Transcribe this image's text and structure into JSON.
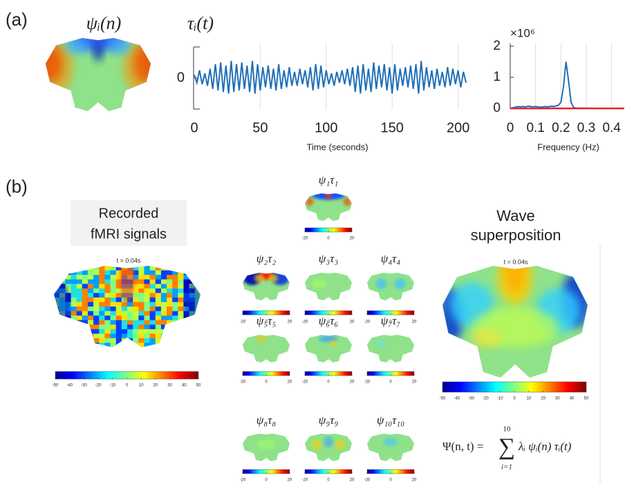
{
  "panel_labels": [
    "(a)",
    "(b)"
  ],
  "panel_a": {
    "map_label": "ψᵢ(n)",
    "series_label": "τᵢ(t)"
  },
  "chart_data": [
    {
      "type": "line",
      "x_label": "Time (seconds)",
      "x": [
        0,
        2,
        4,
        6,
        8,
        10,
        12,
        14,
        16,
        18,
        20,
        22,
        24,
        26,
        28,
        30,
        32,
        34,
        36,
        38,
        40,
        42,
        44,
        46,
        48,
        50,
        52,
        54,
        56,
        58,
        60,
        62,
        64,
        66,
        68,
        70,
        72,
        74,
        76,
        78,
        80,
        82,
        84,
        86,
        88,
        90,
        92,
        94,
        96,
        98,
        100,
        102,
        104,
        106,
        108,
        110,
        112,
        114,
        116,
        118,
        120,
        122,
        124,
        126,
        128,
        130,
        132,
        134,
        136,
        138,
        140,
        142,
        144,
        146,
        148,
        150,
        152,
        154,
        156,
        158,
        160,
        162,
        164,
        166,
        168,
        170,
        172,
        174,
        176,
        178,
        180,
        182,
        184,
        186,
        188,
        190,
        192,
        194,
        196,
        198,
        200,
        202,
        204,
        206
      ],
      "series": [
        {
          "color": "#1f6fb8",
          "values": [
            0.2,
            -0.3,
            0.5,
            -0.4,
            0.3,
            -0.5,
            0.6,
            -0.7,
            0.9,
            -0.8,
            1.0,
            -0.9,
            0.8,
            -1.0,
            1.1,
            -0.9,
            0.9,
            -0.8,
            1.0,
            -0.7,
            0.8,
            -0.9,
            1.1,
            -1.0,
            0.9,
            -0.8,
            0.7,
            -0.6,
            0.8,
            -0.7,
            0.6,
            -0.8,
            0.9,
            -0.7,
            0.5,
            -0.6,
            0.7,
            -0.5,
            0.4,
            -0.5,
            0.6,
            -0.4,
            0.5,
            -0.6,
            0.7,
            -0.8,
            0.9,
            -0.7,
            0.8,
            -0.6,
            0.5,
            -0.4,
            0.3,
            -0.5,
            0.4,
            -0.3,
            0.5,
            -0.4,
            0.6,
            -0.5,
            0.7,
            -0.9,
            0.8,
            -1.0,
            0.9,
            -0.8,
            0.6,
            -0.9,
            1.0,
            -0.7,
            0.8,
            -0.6,
            0.9,
            -0.8,
            0.7,
            -1.0,
            0.9,
            -0.8,
            0.6,
            -0.5,
            0.7,
            -0.6,
            0.8,
            -0.7,
            0.9,
            -1.0,
            1.1,
            -0.8,
            0.7,
            -0.6,
            0.5,
            -0.7,
            0.6,
            -0.5,
            0.4,
            -0.6,
            0.7,
            -0.5,
            0.6,
            -0.4,
            0.5,
            -0.6,
            0.4,
            -0.3
          ]
        }
      ],
      "xlim": [
        0,
        207
      ],
      "xticks": [
        0,
        50,
        100,
        150,
        200
      ],
      "ylim": [
        -2,
        2
      ],
      "yticks": [
        0
      ],
      "grid": true
    },
    {
      "type": "line",
      "x_label": "Frequency (Hz)",
      "y_multiplier": "×10⁶",
      "x": [
        0,
        0.01,
        0.02,
        0.03,
        0.04,
        0.05,
        0.06,
        0.07,
        0.08,
        0.09,
        0.1,
        0.11,
        0.12,
        0.13,
        0.14,
        0.15,
        0.16,
        0.17,
        0.18,
        0.19,
        0.2,
        0.21,
        0.22,
        0.23,
        0.24,
        0.25,
        0.26,
        0.27,
        0.28,
        0.29,
        0.3,
        0.31,
        0.32,
        0.33,
        0.34,
        0.35,
        0.36,
        0.37,
        0.38,
        0.39,
        0.4,
        0.41,
        0.42,
        0.43,
        0.44,
        0.45
      ],
      "series": [
        {
          "color": "#1f6fb8",
          "values": [
            0,
            20000,
            40000,
            60000,
            50000,
            60000,
            50000,
            70000,
            60000,
            50000,
            60000,
            50000,
            40000,
            50000,
            60000,
            50000,
            70000,
            60000,
            80000,
            100000,
            200000,
            700000,
            1500000,
            900000,
            200000,
            30000,
            10000,
            5000,
            5000,
            5000,
            5000,
            0,
            0,
            0,
            0,
            0,
            0,
            0,
            0,
            0,
            0,
            0,
            0,
            0,
            0,
            0
          ]
        },
        {
          "color": "#e8232a",
          "x": [
            0,
            0.45
          ],
          "values": [
            0,
            0
          ]
        }
      ],
      "xlim": [
        0,
        0.45
      ],
      "xticks": [
        0,
        0.1,
        0.2,
        0.3,
        0.4
      ],
      "ylim": [
        0,
        2000000
      ],
      "yticks": [
        0,
        {
          "value": 1000000,
          "label": "1"
        },
        {
          "value": 2000000,
          "label": "2"
        }
      ],
      "grid": true
    }
  ],
  "panel_b": {
    "recorded": {
      "title": [
        "Recorded",
        "fMRI signals"
      ],
      "time": "t = 0.04s",
      "colorbar_ticks": [
        -50,
        -40,
        -30,
        -20,
        -10,
        0,
        10,
        20,
        30,
        40,
        50
      ]
    },
    "modes": [
      {
        "label": "ψ₁τ₁",
        "colorbar_ticks": [
          -20,
          0,
          20
        ]
      },
      {
        "label": "ψ₂τ₂",
        "colorbar_ticks": [
          -20,
          0,
          20
        ]
      },
      {
        "label": "ψ₃τ₃",
        "colorbar_ticks": [
          -20,
          0,
          20
        ]
      },
      {
        "label": "ψ₄τ₄",
        "colorbar_ticks": [
          -20,
          0,
          20
        ]
      },
      {
        "label": "ψ₅τ₅",
        "colorbar_ticks": [
          -20,
          0,
          20
        ]
      },
      {
        "label": "ψ₆τ₆",
        "colorbar_ticks": [
          -20,
          0,
          20
        ]
      },
      {
        "label": "ψ₇τ₇",
        "colorbar_ticks": [
          -20,
          0,
          20
        ]
      },
      {
        "label": "ψ₈τ₈",
        "colorbar_ticks": [
          -20,
          0,
          20
        ]
      },
      {
        "label": "ψ₉τ₉",
        "colorbar_ticks": [
          -20,
          0,
          20
        ]
      },
      {
        "label": "ψ₁₀τ₁₀",
        "colorbar_ticks": [
          -20,
          0,
          20
        ]
      }
    ],
    "superposition": {
      "title": [
        "Wave",
        "superposition"
      ],
      "time": "t = 0.04s",
      "colorbar_ticks": [
        -50,
        -40,
        -30,
        -20,
        -10,
        0,
        10,
        20,
        30,
        40,
        50
      ]
    },
    "formula": {
      "lhs": "Ψ(n, t) =",
      "sum": "∑",
      "upper": "10",
      "lower": "i=1",
      "rhs": "λᵢ ψᵢ(n) τᵢ(t)"
    }
  }
}
